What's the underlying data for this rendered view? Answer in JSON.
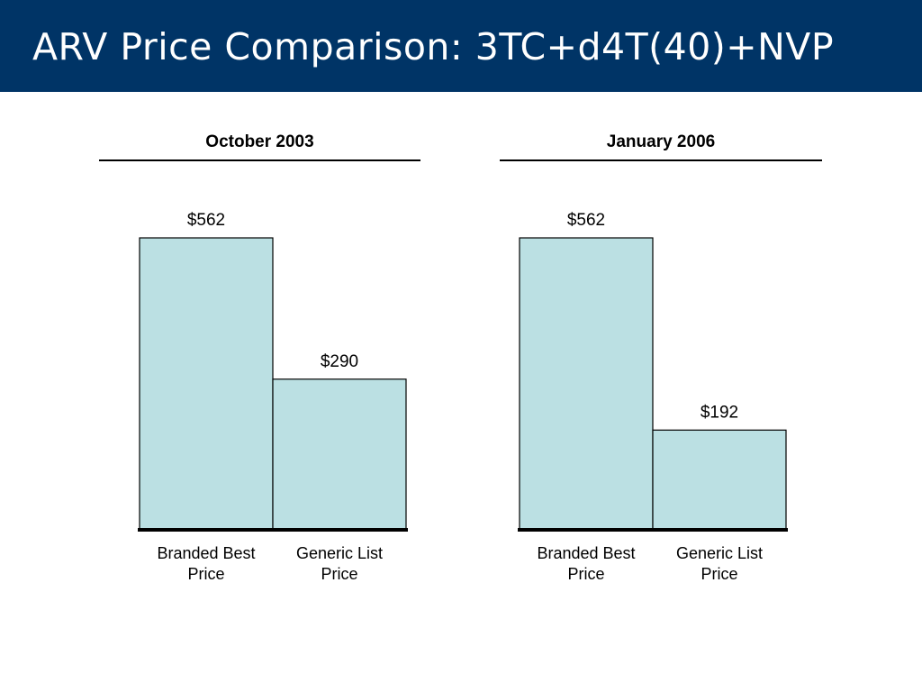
{
  "title": "ARV Price Comparison: 3TC+d4T(40)+NVP",
  "colors": {
    "title_bar": "#003466",
    "bar_fill": "#bbe0e3",
    "bar_stroke": "#000000"
  },
  "chart_data": [
    {
      "type": "bar",
      "title": "October 2003",
      "categories": [
        [
          "Branded Best",
          "Price"
        ],
        [
          "Generic List",
          "Price"
        ]
      ],
      "values": [
        562,
        290
      ],
      "value_labels": [
        "$562",
        "$290"
      ],
      "ylim": [
        0,
        562
      ],
      "grid": false
    },
    {
      "type": "bar",
      "title": "January 2006",
      "categories": [
        [
          "Branded Best",
          "Price"
        ],
        [
          "Generic List",
          "Price"
        ]
      ],
      "values": [
        562,
        192
      ],
      "value_labels": [
        "$562",
        "$192"
      ],
      "ylim": [
        0,
        562
      ],
      "grid": false
    }
  ]
}
